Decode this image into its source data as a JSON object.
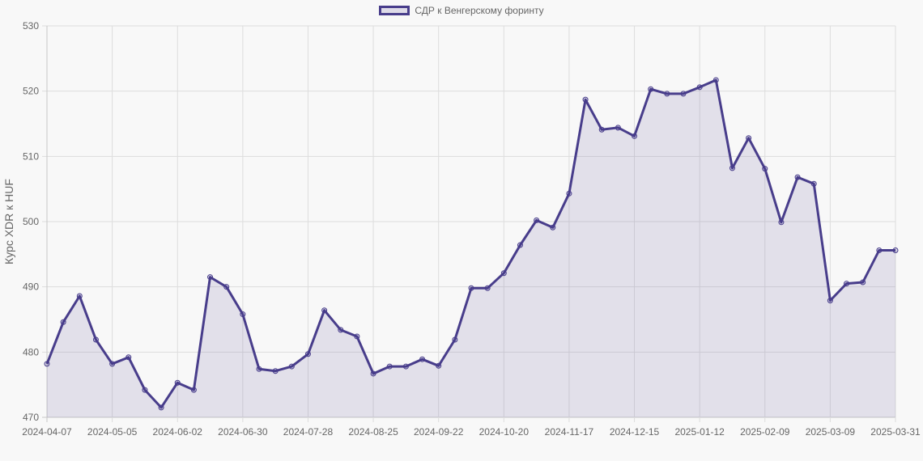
{
  "chart_data": {
    "type": "line",
    "title": "",
    "legend": [
      {
        "label": "СДР к Венгерскому форинту",
        "color": "#483d8b",
        "fill": "rgba(72,61,139,0.12)"
      }
    ],
    "legend_position": "top",
    "xlabel": "",
    "ylabel": "Курс XDR к HUF",
    "ylim": [
      470,
      530
    ],
    "yticks": [
      470,
      480,
      490,
      500,
      510,
      520,
      530
    ],
    "grid": true,
    "x_tick_labels": [
      "2024-04-07",
      "2024-05-05",
      "2024-06-02",
      "2024-06-30",
      "2024-07-28",
      "2024-08-25",
      "2024-09-22",
      "2024-10-20",
      "2024-11-17",
      "2024-12-15",
      "2025-01-12",
      "2025-02-09",
      "2025-03-09",
      "2025-03-31"
    ],
    "x_tick_indices": [
      0,
      4,
      8,
      12,
      16,
      20,
      24,
      28,
      32,
      36,
      40,
      44,
      48,
      52
    ],
    "series": [
      {
        "name": "СДР к Венгерскому форинту",
        "values": [
          478.2,
          484.6,
          488.6,
          481.9,
          478.2,
          479.2,
          474.2,
          471.5,
          475.3,
          474.2,
          491.5,
          490.0,
          485.8,
          477.4,
          477.1,
          477.8,
          479.7,
          486.4,
          483.4,
          482.4,
          476.7,
          477.8,
          477.8,
          478.9,
          477.9,
          481.9,
          489.8,
          489.8,
          492.1,
          496.4,
          500.2,
          499.1,
          504.3,
          518.7,
          514.1,
          514.4,
          513.1,
          520.3,
          519.6,
          519.6,
          520.6,
          521.7,
          508.2,
          512.8,
          508.1,
          499.9,
          506.8,
          505.8,
          487.9,
          490.5,
          490.7,
          495.6,
          495.6
        ]
      }
    ]
  }
}
